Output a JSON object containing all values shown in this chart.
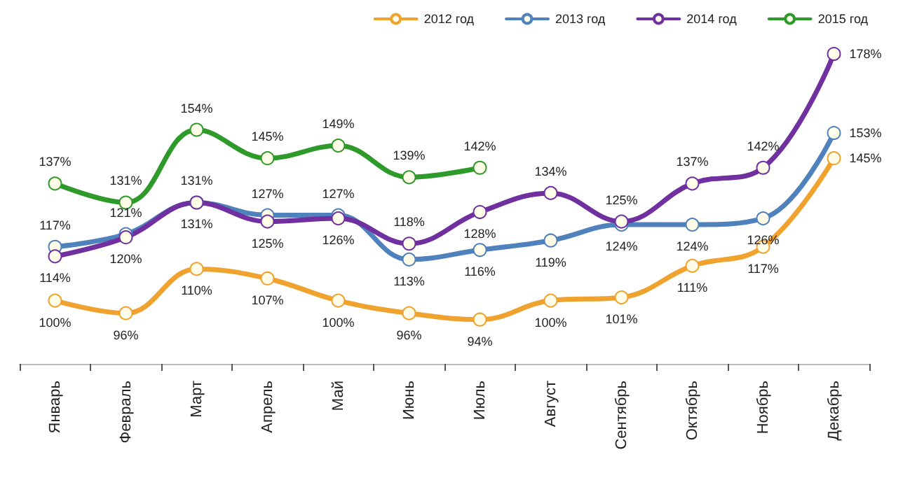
{
  "chart_data": {
    "type": "line",
    "categories": [
      "Январь",
      "Февраль",
      "Март",
      "Апрель",
      "Май",
      "Июнь",
      "Июль",
      "Август",
      "Сентябрь",
      "Октябрь",
      "Ноябрь",
      "Декабрь"
    ],
    "series": [
      {
        "name": "2012 год",
        "color": "#f0a22e",
        "values": [
          100,
          96,
          110,
          107,
          100,
          96,
          94,
          100,
          101,
          111,
          117,
          145
        ],
        "value_labels": [
          "100%",
          "96%",
          "110%",
          "107%",
          "100%",
          "96%",
          "94%",
          "100%",
          "101%",
          "111%",
          "117%",
          "145%"
        ]
      },
      {
        "name": "2013 год",
        "color": "#4f81bd",
        "values": [
          117,
          121,
          131,
          127,
          127,
          113,
          116,
          119,
          124,
          124,
          126,
          153
        ],
        "value_labels": [
          "117%",
          "121%",
          "131%",
          "127%",
          "127%",
          "113%",
          "116%",
          "119%",
          "124%",
          "124%",
          "126%",
          "153%"
        ]
      },
      {
        "name": "2014 год",
        "color": "#7030a0",
        "values": [
          114,
          120,
          131,
          125,
          126,
          118,
          128,
          134,
          125,
          137,
          142,
          178
        ],
        "value_labels": [
          "114%",
          "120%",
          "131%",
          "125%",
          "126%",
          "118%",
          "128%",
          "134%",
          "125%",
          "137%",
          "142%",
          "178%"
        ]
      },
      {
        "name": "2015 год",
        "color": "#2e9a2a",
        "values": [
          137,
          131,
          154,
          145,
          149,
          139,
          142,
          null,
          null,
          null,
          null,
          null
        ],
        "value_labels": [
          "137%",
          "131%",
          "154%",
          "145%",
          "149%",
          "139%",
          "142%",
          null,
          null,
          null,
          null,
          null
        ]
      }
    ],
    "legend": "top right",
    "marker": "circle",
    "line_style": "solid",
    "grid": false
  }
}
